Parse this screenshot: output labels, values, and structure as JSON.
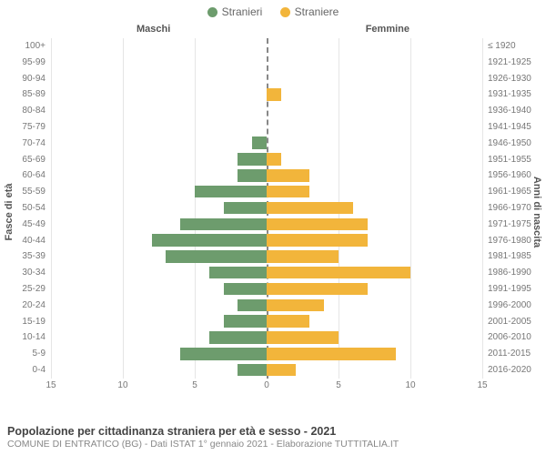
{
  "legend": {
    "male": {
      "label": "Stranieri",
      "color": "#6d9c6d"
    },
    "female": {
      "label": "Straniere",
      "color": "#f2b53b"
    }
  },
  "headers": {
    "male": "Maschi",
    "female": "Femmine"
  },
  "axes": {
    "left_label": "Fasce di età",
    "right_label": "Anni di nascita",
    "x_max": 15,
    "x_ticks": [
      15,
      10,
      5,
      0,
      5,
      10,
      15
    ]
  },
  "colors": {
    "grid": "#e5e5e5",
    "center_dash": "#888888",
    "background": "#ffffff",
    "tick_text": "#777777"
  },
  "chart": {
    "type": "population-pyramid",
    "rows": [
      {
        "age": "100+",
        "birth": "≤ 1920",
        "m": 0,
        "f": 0
      },
      {
        "age": "95-99",
        "birth": "1921-1925",
        "m": 0,
        "f": 0
      },
      {
        "age": "90-94",
        "birth": "1926-1930",
        "m": 0,
        "f": 0
      },
      {
        "age": "85-89",
        "birth": "1931-1935",
        "m": 0,
        "f": 1
      },
      {
        "age": "80-84",
        "birth": "1936-1940",
        "m": 0,
        "f": 0
      },
      {
        "age": "75-79",
        "birth": "1941-1945",
        "m": 0,
        "f": 0
      },
      {
        "age": "70-74",
        "birth": "1946-1950",
        "m": 1,
        "f": 0
      },
      {
        "age": "65-69",
        "birth": "1951-1955",
        "m": 2,
        "f": 1
      },
      {
        "age": "60-64",
        "birth": "1956-1960",
        "m": 2,
        "f": 3
      },
      {
        "age": "55-59",
        "birth": "1961-1965",
        "m": 5,
        "f": 3
      },
      {
        "age": "50-54",
        "birth": "1966-1970",
        "m": 3,
        "f": 6
      },
      {
        "age": "45-49",
        "birth": "1971-1975",
        "m": 6,
        "f": 7
      },
      {
        "age": "40-44",
        "birth": "1976-1980",
        "m": 8,
        "f": 7
      },
      {
        "age": "35-39",
        "birth": "1981-1985",
        "m": 7,
        "f": 5
      },
      {
        "age": "30-34",
        "birth": "1986-1990",
        "m": 4,
        "f": 10
      },
      {
        "age": "25-29",
        "birth": "1991-1995",
        "m": 3,
        "f": 7
      },
      {
        "age": "20-24",
        "birth": "1996-2000",
        "m": 2,
        "f": 4
      },
      {
        "age": "15-19",
        "birth": "2001-2005",
        "m": 3,
        "f": 3
      },
      {
        "age": "10-14",
        "birth": "2006-2010",
        "m": 4,
        "f": 5
      },
      {
        "age": "5-9",
        "birth": "2011-2015",
        "m": 6,
        "f": 9
      },
      {
        "age": "0-4",
        "birth": "2016-2020",
        "m": 2,
        "f": 2
      }
    ]
  },
  "footer": {
    "title": "Popolazione per cittadinanza straniera per età e sesso - 2021",
    "subtitle": "COMUNE DI ENTRATICO (BG) - Dati ISTAT 1° gennaio 2021 - Elaborazione TUTTITALIA.IT"
  }
}
